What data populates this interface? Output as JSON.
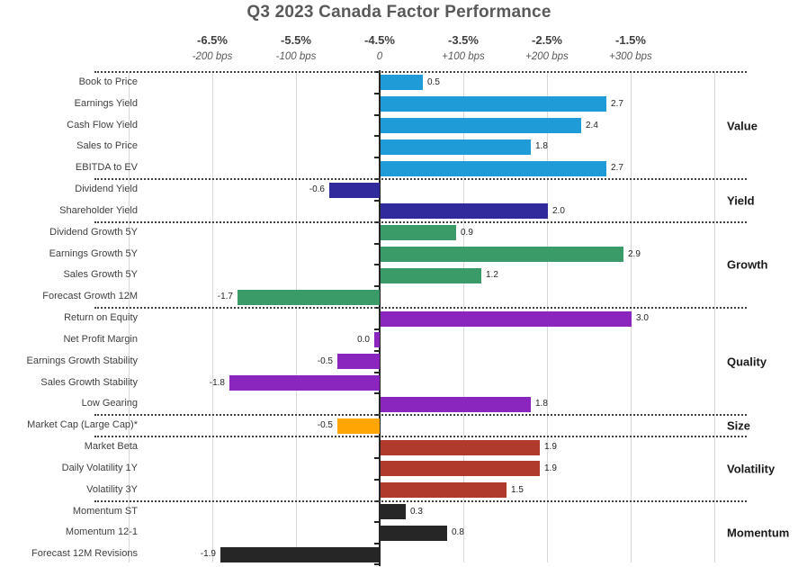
{
  "title": "Q3 2023 Canada Factor Performance",
  "axis": {
    "percent_labels": [
      "-6.5%",
      "-5.5%",
      "-4.5%",
      "-3.5%",
      "-2.5%",
      "-1.5%"
    ],
    "bps_labels": [
      "-200 bps",
      "-100 bps",
      "0",
      "+100 bps",
      "+200 bps",
      "+300 bps"
    ]
  },
  "chart_data": {
    "type": "bar",
    "orientation": "horizontal",
    "title": "Q3 2023 Canada Factor Performance",
    "value_unit": "1.0 bar unit = 100 bps",
    "xlim_bps": [
      -300,
      400
    ],
    "grid": "vertical light gridlines every 100 bps",
    "legend_position": "group labels on right side",
    "x_primary_ticks": [
      "-6.5%",
      "-5.5%",
      "-4.5%",
      "-3.5%",
      "-2.5%",
      "-1.5%"
    ],
    "x_secondary_ticks": [
      "-200 bps",
      "-100 bps",
      "0",
      "+100 bps",
      "+200 bps",
      "+300 bps"
    ],
    "groups": [
      {
        "name": "Value",
        "color": "#1f9bd7",
        "rows": [
          {
            "label": "Book to Price",
            "value": 0.5,
            "display": "0.5"
          },
          {
            "label": "Earnings Yield",
            "value": 2.7,
            "display": "2.7"
          },
          {
            "label": "Cash Flow Yield",
            "value": 2.4,
            "display": "2.4"
          },
          {
            "label": "Sales to Price",
            "value": 1.8,
            "display": "1.8"
          },
          {
            "label": "EBITDA to EV",
            "value": 2.7,
            "display": "2.7"
          }
        ]
      },
      {
        "name": "Yield",
        "color": "#312a9d",
        "rows": [
          {
            "label": "Dividend Yield",
            "value": -0.6,
            "display": "-0.6"
          },
          {
            "label": "Shareholder Yield",
            "value": 2.0,
            "display": "2.0"
          }
        ]
      },
      {
        "name": "Growth",
        "color": "#3a9a68",
        "rows": [
          {
            "label": "Dividend Growth 5Y",
            "value": 0.9,
            "display": "0.9"
          },
          {
            "label": "Earnings Growth 5Y",
            "value": 2.9,
            "display": "2.9"
          },
          {
            "label": "Sales Growth 5Y",
            "value": 1.2,
            "display": "1.2"
          },
          {
            "label": "Forecast Growth 12M",
            "value": -1.7,
            "display": "-1.7"
          }
        ]
      },
      {
        "name": "Quality",
        "color": "#8a26bd",
        "rows": [
          {
            "label": "Return on Equity",
            "value": 3.0,
            "display": "3.0"
          },
          {
            "label": "Net Profit Margin",
            "value": 0.0,
            "display": "0.0"
          },
          {
            "label": "Earnings Growth Stability",
            "value": -0.5,
            "display": "-0.5"
          },
          {
            "label": "Sales Growth Stability",
            "value": -1.8,
            "display": "-1.8"
          },
          {
            "label": "Low Gearing",
            "value": 1.8,
            "display": "1.8"
          }
        ]
      },
      {
        "name": "Size",
        "color": "#ffa504",
        "rows": [
          {
            "label": "Market Cap (Large Cap)*",
            "value": -0.5,
            "display": "-0.5"
          }
        ]
      },
      {
        "name": "Volatility",
        "color": "#b03a2b",
        "rows": [
          {
            "label": "Market Beta",
            "value": 1.9,
            "display": "1.9"
          },
          {
            "label": "Daily Volatility 1Y",
            "value": 1.9,
            "display": "1.9"
          },
          {
            "label": "Volatility 3Y",
            "value": 1.5,
            "display": "1.5"
          }
        ]
      },
      {
        "name": "Momentum",
        "color": "#262626",
        "rows": [
          {
            "label": "Momentum ST",
            "value": 0.3,
            "display": "0.3"
          },
          {
            "label": "Momentum 12-1",
            "value": 0.8,
            "display": "0.8"
          },
          {
            "label": "Forecast 12M Revisions",
            "value": -1.9,
            "display": "-1.9"
          }
        ]
      }
    ]
  }
}
